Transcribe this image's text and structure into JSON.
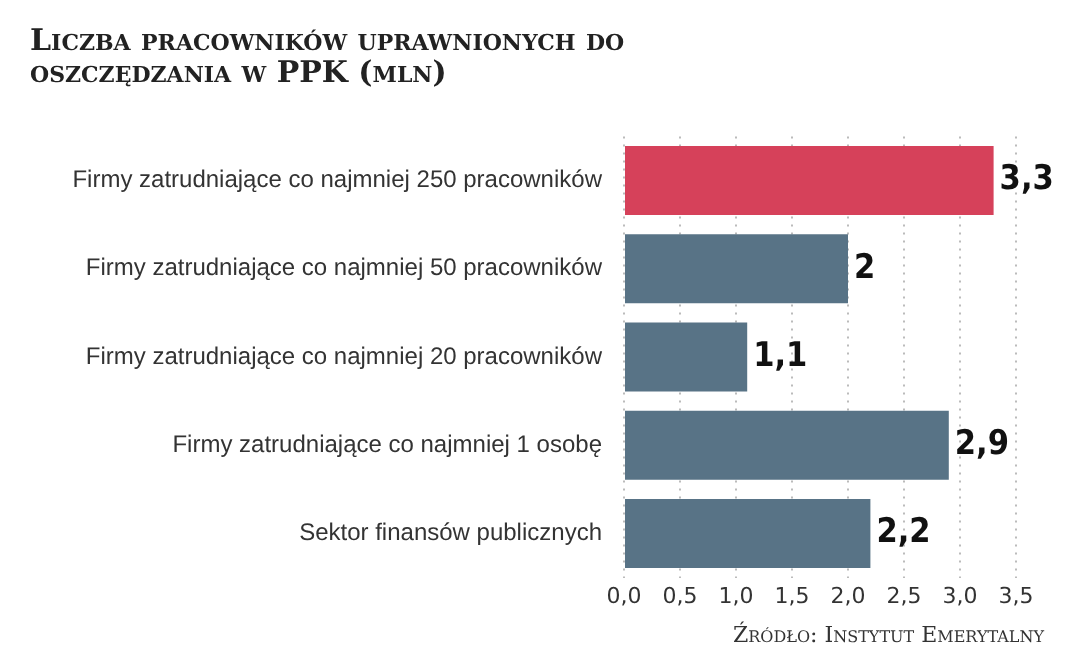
{
  "chart_data": {
    "type": "bar",
    "orientation": "horizontal",
    "title": "Liczba pracowników uprawnionych do oszczędzania w PPK (mln)",
    "categories": [
      "Firmy zatrudniające co najmniej 250 pracowników",
      "Firmy zatrudniające co najmniej 50 pracowników",
      "Firmy zatrudniające co najmniej 20 pracowników",
      "Firmy zatrudniające co najmniej 1 osobę",
      "Sektor finansów publicznych"
    ],
    "values": [
      3.3,
      2,
      1.1,
      2.9,
      2.2
    ],
    "value_labels": [
      "3,3",
      "2",
      "1,1",
      "2,9",
      "2,2"
    ],
    "colors": [
      "#d6415a",
      "#587386",
      "#587386",
      "#587386",
      "#587386"
    ],
    "xlim": [
      0,
      3.5
    ],
    "xticks": [
      {
        "value": 0,
        "label": "0,0"
      },
      {
        "value": 0.5,
        "label": "0,5"
      },
      {
        "value": 1,
        "label": "1,0"
      },
      {
        "value": 1.5,
        "label": "1,5"
      },
      {
        "value": 2,
        "label": "2,0"
      },
      {
        "value": 2.5,
        "label": "2,5"
      },
      {
        "value": 3,
        "label": "3,0"
      },
      {
        "value": 3.5,
        "label": "3,5"
      }
    ],
    "grid": "x",
    "legend": false,
    "annotations": [
      "Źródło: Instytut Emerytalny"
    ]
  }
}
